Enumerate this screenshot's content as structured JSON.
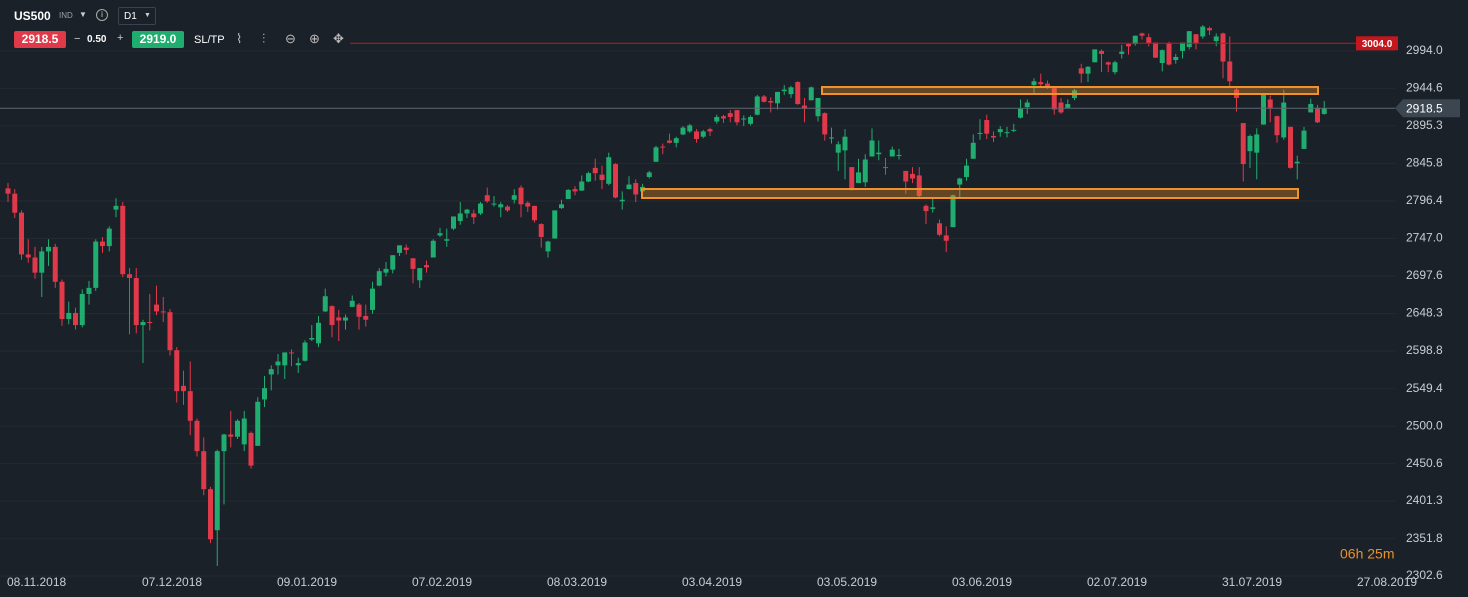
{
  "header": {
    "symbol": "US500",
    "market": "IND",
    "timeframe": "D1",
    "sell_price": "2918.5",
    "volume": "0.50",
    "buy_price": "2919.0",
    "sltp": "SL/TP"
  },
  "chart_data": {
    "type": "candlestick",
    "categories": [
      "08.11.2018",
      null,
      null,
      null,
      null,
      null,
      null,
      null,
      null,
      null,
      null,
      null,
      null,
      null,
      null,
      null,
      null,
      null,
      null,
      null,
      "07.12.2018",
      null,
      null,
      null,
      null,
      null,
      null,
      null,
      null,
      null,
      null,
      null,
      null,
      null,
      null,
      null,
      null,
      null,
      null,
      null,
      "09.01.2019",
      null,
      null,
      null,
      null,
      null,
      null,
      null,
      null,
      null,
      null,
      null,
      null,
      null,
      null,
      null,
      null,
      null,
      null,
      null,
      "07.02.2019",
      null,
      null,
      null,
      null,
      null,
      null,
      null,
      null,
      null,
      null,
      null,
      null,
      null,
      null,
      null,
      null,
      null,
      null,
      null,
      "08.03.2019",
      null,
      null,
      null,
      null,
      null,
      null,
      null,
      null,
      null,
      null,
      null,
      null,
      null,
      null,
      null,
      null,
      null,
      null,
      null,
      "03.04.2019",
      null,
      null,
      null,
      null,
      null,
      null,
      null,
      null,
      null,
      null,
      null,
      null,
      null,
      null,
      null,
      null,
      null,
      null,
      null,
      "03.05.2019",
      null,
      null,
      null,
      null,
      null,
      null,
      null,
      null,
      null,
      null,
      null,
      null,
      null,
      null,
      null,
      null,
      null,
      null,
      null,
      "03.06.2019",
      null,
      null,
      null,
      null,
      null,
      null,
      null,
      null,
      null,
      null,
      null,
      null,
      null,
      null,
      null,
      null,
      null,
      null,
      null,
      "02.07.2019",
      null,
      null,
      null,
      null,
      null,
      null,
      null,
      null,
      null,
      null,
      null,
      null,
      null,
      null,
      null,
      null,
      null,
      null,
      null,
      "31.07.2019",
      null,
      null,
      null,
      null,
      null,
      null,
      null,
      null,
      null,
      null,
      null,
      null,
      null,
      null,
      null,
      null,
      null,
      null,
      null,
      "27.08.2019"
    ],
    "ohlc": [
      [
        2813,
        2820,
        2795,
        2806
      ],
      [
        2806,
        2812,
        2774,
        2781
      ],
      [
        2781,
        2784,
        2719,
        2726
      ],
      [
        2726,
        2746,
        2715,
        2722
      ],
      [
        2722,
        2736,
        2694,
        2702
      ],
      [
        2702,
        2736,
        2670,
        2730
      ],
      [
        2730,
        2746,
        2711,
        2736
      ],
      [
        2736,
        2740,
        2682,
        2690
      ],
      [
        2690,
        2693,
        2632,
        2641
      ],
      [
        2641,
        2664,
        2634,
        2649
      ],
      [
        2649,
        2656,
        2627,
        2633
      ],
      [
        2633,
        2680,
        2630,
        2674
      ],
      [
        2674,
        2691,
        2660,
        2682
      ],
      [
        2682,
        2746,
        2678,
        2743
      ],
      [
        2743,
        2749,
        2728,
        2737
      ],
      [
        2737,
        2763,
        2730,
        2760
      ],
      [
        2785,
        2800,
        2775,
        2790
      ],
      [
        2790,
        2795,
        2696,
        2700
      ],
      [
        2700,
        2708,
        2621,
        2695
      ],
      [
        2695,
        2708,
        2622,
        2633
      ],
      [
        2633,
        2640,
        2583,
        2637
      ],
      [
        2637,
        2674,
        2626,
        2636
      ],
      [
        2660,
        2685,
        2646,
        2651
      ],
      [
        2651,
        2670,
        2637,
        2650
      ],
      [
        2650,
        2654,
        2593,
        2600
      ],
      [
        2600,
        2604,
        2531,
        2546
      ],
      [
        2553,
        2573,
        2528,
        2546
      ],
      [
        2546,
        2585,
        2488,
        2507
      ],
      [
        2507,
        2510,
        2460,
        2467
      ],
      [
        2467,
        2485,
        2409,
        2417
      ],
      [
        2417,
        2420,
        2346,
        2351
      ],
      [
        2363,
        2469,
        2316,
        2467
      ],
      [
        2467,
        2490,
        2397,
        2489
      ],
      [
        2489,
        2520,
        2472,
        2486
      ],
      [
        2486,
        2509,
        2483,
        2507
      ],
      [
        2476,
        2520,
        2467,
        2510
      ],
      [
        2491,
        2493,
        2444,
        2448
      ],
      [
        2474,
        2538,
        2474,
        2532
      ],
      [
        2535,
        2566,
        2525,
        2550
      ],
      [
        2568,
        2580,
        2547,
        2575
      ],
      [
        2580,
        2595,
        2568,
        2585
      ],
      [
        2580,
        2597,
        2562,
        2597
      ],
      [
        2597,
        2601,
        2579,
        2596
      ],
      [
        2580,
        2590,
        2570,
        2583
      ],
      [
        2586,
        2613,
        2585,
        2610
      ],
      [
        2614,
        2633,
        2612,
        2616
      ],
      [
        2609,
        2645,
        2604,
        2636
      ],
      [
        2651,
        2681,
        2650,
        2671
      ],
      [
        2658,
        2659,
        2617,
        2633
      ],
      [
        2643,
        2653,
        2612,
        2639
      ],
      [
        2639,
        2647,
        2627,
        2643
      ],
      [
        2657,
        2672,
        2657,
        2665
      ],
      [
        2660,
        2662,
        2627,
        2644
      ],
      [
        2645,
        2660,
        2631,
        2640
      ],
      [
        2653,
        2690,
        2648,
        2681
      ],
      [
        2685,
        2708,
        2684,
        2704
      ],
      [
        2702,
        2716,
        2697,
        2707
      ],
      [
        2706,
        2725,
        2701,
        2725
      ],
      [
        2728,
        2738,
        2724,
        2738
      ],
      [
        2735,
        2739,
        2726,
        2732
      ],
      [
        2721,
        2721,
        2688,
        2707
      ],
      [
        2692,
        2708,
        2682,
        2708
      ],
      [
        2712,
        2718,
        2702,
        2709
      ],
      [
        2722,
        2746,
        2722,
        2744
      ],
      [
        2751,
        2761,
        2749,
        2754
      ],
      [
        2744,
        2760,
        2736,
        2746
      ],
      [
        2760,
        2776,
        2758,
        2776
      ],
      [
        2770,
        2795,
        2765,
        2780
      ],
      [
        2780,
        2786,
        2774,
        2785
      ],
      [
        2780,
        2785,
        2766,
        2775
      ],
      [
        2780,
        2795,
        2778,
        2793
      ],
      [
        2804,
        2814,
        2794,
        2796
      ],
      [
        2792,
        2803,
        2789,
        2793
      ],
      [
        2788,
        2795,
        2775,
        2792
      ],
      [
        2789,
        2791,
        2782,
        2784
      ],
      [
        2798,
        2812,
        2793,
        2804
      ],
      [
        2814,
        2817,
        2775,
        2792
      ],
      [
        2794,
        2796,
        2782,
        2789
      ],
      [
        2790,
        2790,
        2768,
        2771
      ],
      [
        2766,
        2767,
        2735,
        2749
      ],
      [
        2730,
        2744,
        2722,
        2743
      ],
      [
        2747,
        2784,
        2747,
        2784
      ],
      [
        2787,
        2798,
        2786,
        2792
      ],
      [
        2799,
        2812,
        2799,
        2811
      ],
      [
        2812,
        2816,
        2804,
        2809
      ],
      [
        2810,
        2830,
        2810,
        2822
      ],
      [
        2822,
        2835,
        2821,
        2833
      ],
      [
        2840,
        2852,
        2823,
        2833
      ],
      [
        2831,
        2843,
        2812,
        2824
      ],
      [
        2819,
        2860,
        2817,
        2854
      ],
      [
        2845,
        2846,
        2800,
        2801
      ],
      [
        2796,
        2809,
        2785,
        2798
      ],
      [
        2812,
        2829,
        2812,
        2818
      ],
      [
        2820,
        2825,
        2795,
        2805
      ],
      [
        2809,
        2819,
        2799,
        2815
      ],
      [
        2828,
        2836,
        2826,
        2834
      ],
      [
        2848,
        2869,
        2848,
        2867
      ],
      [
        2868,
        2872,
        2858,
        2867
      ],
      [
        2876,
        2885,
        2872,
        2873
      ],
      [
        2873,
        2881,
        2867,
        2879
      ],
      [
        2884,
        2895,
        2883,
        2893
      ],
      [
        2888,
        2898,
        2886,
        2896
      ],
      [
        2888,
        2891,
        2873,
        2878
      ],
      [
        2881,
        2890,
        2879,
        2888
      ],
      [
        2891,
        2893,
        2882,
        2888
      ],
      [
        2901,
        2910,
        2898,
        2907
      ],
      [
        2908,
        2910,
        2899,
        2905
      ],
      [
        2912,
        2916,
        2900,
        2907
      ],
      [
        2916,
        2916,
        2896,
        2900
      ],
      [
        2904,
        2909,
        2895,
        2905
      ],
      [
        2898,
        2909,
        2896,
        2907
      ],
      [
        2910,
        2936,
        2909,
        2934
      ],
      [
        2934,
        2936,
        2926,
        2927
      ],
      [
        2928,
        2933,
        2913,
        2926
      ],
      [
        2925,
        2940,
        2917,
        2940
      ],
      [
        2941,
        2949,
        2936,
        2943
      ],
      [
        2937,
        2948,
        2932,
        2946
      ],
      [
        2953,
        2954,
        2923,
        2924
      ],
      [
        2922,
        2932,
        2900,
        2918
      ],
      [
        2929,
        2947,
        2929,
        2946
      ],
      [
        2908,
        2932,
        2901,
        2932
      ],
      [
        2912,
        2913,
        2876,
        2884
      ],
      [
        2880,
        2893,
        2872,
        2880
      ],
      [
        2860,
        2875,
        2836,
        2871
      ],
      [
        2863,
        2891,
        2825,
        2881
      ],
      [
        2841,
        2841,
        2810,
        2812
      ],
      [
        2820,
        2852,
        2820,
        2834
      ],
      [
        2821,
        2858,
        2815,
        2851
      ],
      [
        2855,
        2892,
        2855,
        2876
      ],
      [
        2858,
        2876,
        2850,
        2860
      ],
      [
        2841,
        2853,
        2831,
        2840
      ],
      [
        2855,
        2868,
        2855,
        2864
      ],
      [
        2856,
        2865,
        2851,
        2857
      ],
      [
        2836,
        2836,
        2806,
        2822
      ],
      [
        2832,
        2841,
        2820,
        2826
      ],
      [
        2830,
        2841,
        2799,
        2803
      ],
      [
        2790,
        2792,
        2766,
        2783
      ],
      [
        2786,
        2800,
        2781,
        2788
      ],
      [
        2767,
        2772,
        2750,
        2752
      ],
      [
        2751,
        2763,
        2729,
        2744
      ],
      [
        2762,
        2805,
        2762,
        2804
      ],
      [
        2818,
        2827,
        2801,
        2826
      ],
      [
        2828,
        2852,
        2823,
        2843
      ],
      [
        2852,
        2884,
        2852,
        2873
      ],
      [
        2886,
        2904,
        2877,
        2886
      ],
      [
        2903,
        2910,
        2878,
        2885
      ],
      [
        2882,
        2888,
        2874,
        2880
      ],
      [
        2887,
        2895,
        2881,
        2891
      ],
      [
        2886,
        2894,
        2880,
        2887
      ],
      [
        2889,
        2898,
        2887,
        2890
      ],
      [
        2906,
        2930,
        2905,
        2918
      ],
      [
        2920,
        2930,
        2911,
        2926
      ],
      [
        2949,
        2958,
        2938,
        2954
      ],
      [
        2953,
        2964,
        2947,
        2950
      ],
      [
        2951,
        2955,
        2944,
        2945
      ],
      [
        2945,
        2947,
        2910,
        2917
      ],
      [
        2926,
        2932,
        2911,
        2913
      ],
      [
        2919,
        2930,
        2918,
        2924
      ],
      [
        2932,
        2944,
        2929,
        2942
      ],
      [
        2971,
        2977,
        2952,
        2964
      ],
      [
        2964,
        2974,
        2953,
        2973
      ],
      [
        2979,
        2996,
        2979,
        2996
      ],
      [
        2994,
        2996,
        2966,
        2990
      ],
      [
        2979,
        2980,
        2966,
        2976
      ],
      [
        2966,
        2981,
        2963,
        2979
      ],
      [
        2990,
        3002,
        2984,
        2993
      ],
      [
        3003,
        3004,
        2989,
        3000
      ],
      [
        3003,
        3014,
        3001,
        3014
      ],
      [
        3017,
        3018,
        3009,
        3014
      ],
      [
        3012,
        3017,
        3000,
        3004
      ],
      [
        3005,
        3005,
        2985,
        2985
      ],
      [
        2978,
        2996,
        2967,
        2995
      ],
      [
        3004,
        3006,
        2975,
        2976
      ],
      [
        2982,
        2990,
        2977,
        2986
      ],
      [
        2994,
        3005,
        2984,
        3005
      ],
      [
        2999,
        3020,
        2996,
        3020
      ],
      [
        3016,
        3016,
        2996,
        3004
      ],
      [
        3013,
        3028,
        3010,
        3026
      ],
      [
        3024,
        3026,
        3015,
        3021
      ],
      [
        3007,
        3017,
        3000,
        3013
      ],
      [
        3017,
        3018,
        2958,
        2980
      ],
      [
        2980,
        3013,
        2945,
        2954
      ],
      [
        2943,
        2945,
        2914,
        2932
      ],
      [
        2899,
        2899,
        2822,
        2845
      ],
      [
        2862,
        2884,
        2840,
        2882
      ],
      [
        2860,
        2892,
        2825,
        2884
      ],
      [
        2897,
        2938,
        2897,
        2938
      ],
      [
        2930,
        2935,
        2900,
        2919
      ],
      [
        2908,
        2909,
        2873,
        2883
      ],
      [
        2880,
        2943,
        2877,
        2926
      ],
      [
        2894,
        2894,
        2839,
        2840
      ],
      [
        2846,
        2856,
        2825,
        2848
      ],
      [
        2865,
        2894,
        2865,
        2889
      ],
      [
        2913,
        2931,
        2913,
        2924
      ],
      [
        2919,
        2923,
        2899,
        2900
      ],
      [
        2911,
        2928,
        2910,
        2918.5
      ],
      null,
      null,
      null,
      null,
      null
    ],
    "up_color": "#1fae70",
    "down_color": "#e0394a",
    "ylim": [
      2275,
      3061
    ],
    "yticks": [
      {
        "value": 2994,
        "label": "2994.0"
      },
      2944.6,
      2895.3,
      2845.8,
      2796.4,
      {
        "value": 2747,
        "label": "2747.0"
      },
      2697.6,
      2648.3,
      2598.8,
      2549.4,
      {
        "value": 2500,
        "label": "2500.0"
      },
      2450.6,
      2401.3,
      2351.8,
      2302.6
    ],
    "grid": true,
    "price_lines": [
      {
        "value": 3004,
        "label": "3004.0",
        "color": "#c4161c"
      },
      {
        "value": 2918.5,
        "color": "#5d6873"
      }
    ],
    "countdown": "06h 25m"
  }
}
